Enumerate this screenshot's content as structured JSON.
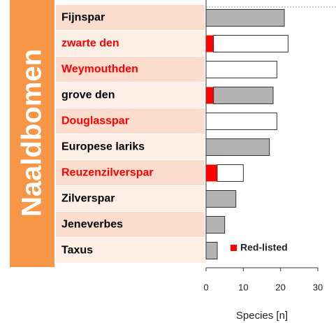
{
  "chart_data": {
    "type": "bar",
    "orientation": "horizontal",
    "stacked": true,
    "group_label": "Naaldbomen",
    "categories": [
      "Fijnspar",
      "zwarte den",
      "Weymouthden",
      "grove den",
      "Douglasspar",
      "Europese lariks",
      "Reuzenzilverspar",
      "Zilverspar",
      "Jeneverbes",
      "Taxus"
    ],
    "category_colors": [
      "#000000",
      "#ff0000",
      "#ff0000",
      "#000000",
      "#ff0000",
      "#000000",
      "#ff0000",
      "#000000",
      "#000000",
      "#000000"
    ],
    "series": [
      {
        "name": "Red-listed",
        "color": "#ff0000",
        "values": [
          0,
          2,
          0,
          2,
          0,
          0,
          3,
          0,
          0,
          0
        ]
      },
      {
        "colors": [
          "#b3b3b3",
          "#ffffff",
          "#ffffff",
          "#b3b3b3",
          "#ffffff",
          "#b3b3b3",
          "#ffffff",
          "#b3b3b3",
          "#b3b3b3",
          "#b3b3b3"
        ],
        "values": [
          21,
          20,
          19,
          16,
          19,
          17,
          7,
          8,
          5,
          3
        ]
      }
    ],
    "xlim": [
      0,
      30
    ],
    "xticks": [
      0,
      10,
      20,
      30
    ],
    "xlabel": "Species [n]",
    "legend": "lower right"
  }
}
